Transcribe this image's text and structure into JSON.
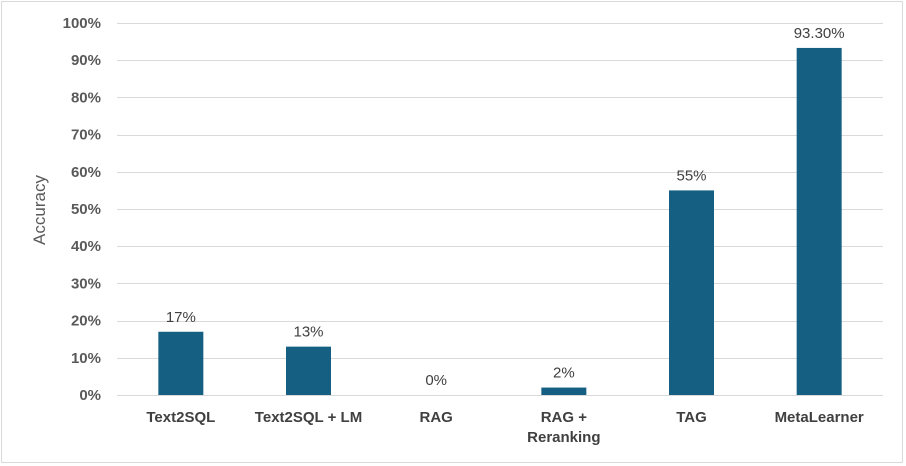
{
  "chart_data": {
    "type": "bar",
    "title": "",
    "xlabel": "",
    "ylabel": "Accuracy",
    "categories": [
      [
        "Text2SQL"
      ],
      [
        "Text2SQL + LM"
      ],
      [
        "RAG"
      ],
      [
        "RAG +",
        "Reranking"
      ],
      [
        "TAG"
      ],
      [
        "MetaLearner"
      ]
    ],
    "values": [
      17,
      13,
      0,
      2,
      55,
      93.3
    ],
    "data_labels": [
      "17%",
      "13%",
      "0%",
      "2%",
      "55%",
      "93.30%"
    ],
    "ylim": [
      0,
      100
    ],
    "yticks": [
      0,
      10,
      20,
      30,
      40,
      50,
      60,
      70,
      80,
      90,
      100
    ],
    "ytick_labels": [
      "0%",
      "10%",
      "20%",
      "30%",
      "40%",
      "50%",
      "60%",
      "70%",
      "80%",
      "90%",
      "100%"
    ],
    "grid": true,
    "legend": "none",
    "colors": {
      "bar": "#156082",
      "grid": "#d9d9d9",
      "text": "#595959"
    }
  }
}
